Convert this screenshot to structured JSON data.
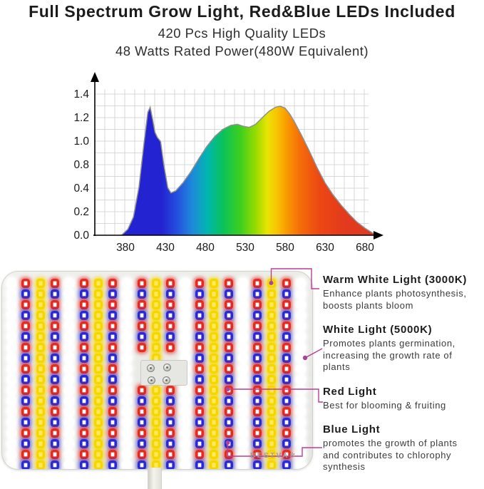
{
  "header": {
    "title": "Full Spectrum Grow Light, Red&Blue LEDs Included",
    "subtitle1": "420 Pcs High Quality LEDs",
    "subtitle2": "48 Watts Rated Power(480W Equivalent)"
  },
  "chart_data": {
    "type": "area",
    "title": "",
    "xlabel": "",
    "ylabel": "",
    "x_ticks": [
      "380",
      "430",
      "480",
      "530",
      "580",
      "630",
      "680"
    ],
    "y_ticks": [
      "1.4",
      "1.2",
      "1.0",
      "0.8",
      "0.4",
      "0.2",
      "0.0"
    ],
    "xlim": [
      372,
      695
    ],
    "ylim": [
      0,
      1.4
    ],
    "grid": true,
    "legend": false,
    "fill": "spectral rainbow gradient (blue to red)",
    "points": [
      [
        375,
        0
      ],
      [
        383,
        0.06
      ],
      [
        390,
        0.18
      ],
      [
        397,
        0.48
      ],
      [
        403,
        0.9
      ],
      [
        408,
        1.22
      ],
      [
        411,
        1.27
      ],
      [
        414,
        1.15
      ],
      [
        417,
        1.02
      ],
      [
        420,
        0.97
      ],
      [
        424,
        0.93
      ],
      [
        428,
        0.7
      ],
      [
        433,
        0.47
      ],
      [
        437,
        0.42
      ],
      [
        443,
        0.44
      ],
      [
        452,
        0.52
      ],
      [
        462,
        0.63
      ],
      [
        472,
        0.76
      ],
      [
        482,
        0.88
      ],
      [
        492,
        0.98
      ],
      [
        502,
        1.05
      ],
      [
        512,
        1.09
      ],
      [
        520,
        1.1
      ],
      [
        528,
        1.08
      ],
      [
        535,
        1.07
      ],
      [
        543,
        1.1
      ],
      [
        552,
        1.17
      ],
      [
        560,
        1.23
      ],
      [
        568,
        1.27
      ],
      [
        574,
        1.28
      ],
      [
        580,
        1.26
      ],
      [
        586,
        1.2
      ],
      [
        592,
        1.12
      ],
      [
        600,
        1.0
      ],
      [
        610,
        0.84
      ],
      [
        620,
        0.67
      ],
      [
        630,
        0.52
      ],
      [
        640,
        0.4
      ],
      [
        650,
        0.3
      ],
      [
        660,
        0.21
      ],
      [
        670,
        0.13
      ],
      [
        680,
        0.07
      ],
      [
        690,
        0.02
      ],
      [
        693,
        0
      ]
    ]
  },
  "panel": {
    "logo_text": "BESTVA",
    "logo_mark": "✼",
    "rows": 18,
    "columns": [
      "white",
      "rb",
      "yellow",
      "rb",
      "white",
      "rb",
      "yellow",
      "rb",
      "white",
      "rb",
      "yellow",
      "rb",
      "white",
      "rb",
      "yellow",
      "rb",
      "white",
      "rb",
      "yellow",
      "rb",
      "white"
    ],
    "colors": {
      "red_led": "#e32b20",
      "blue_led": "#2a2ad0",
      "yellow_led": "#f6d500",
      "white_led": "#ffffff",
      "panel_body": "#ebebe8",
      "callout_accent": "#b83e95"
    }
  },
  "annotations": [
    {
      "heading": "Warm White Light (3000K)",
      "body": "Enhance plants photosynthesis,\nboosts plants bloom"
    },
    {
      "heading": "White Light (5000K)",
      "body": "Promotes plants germination,\nincreasing the growth rate of\nplants"
    },
    {
      "heading": "Red Light",
      "body": "Best for blooming & fruiting"
    },
    {
      "heading": "Blue Light",
      "body": "promotes the growth of plants\nand contributes to chlorophy\nsynthesis"
    }
  ]
}
